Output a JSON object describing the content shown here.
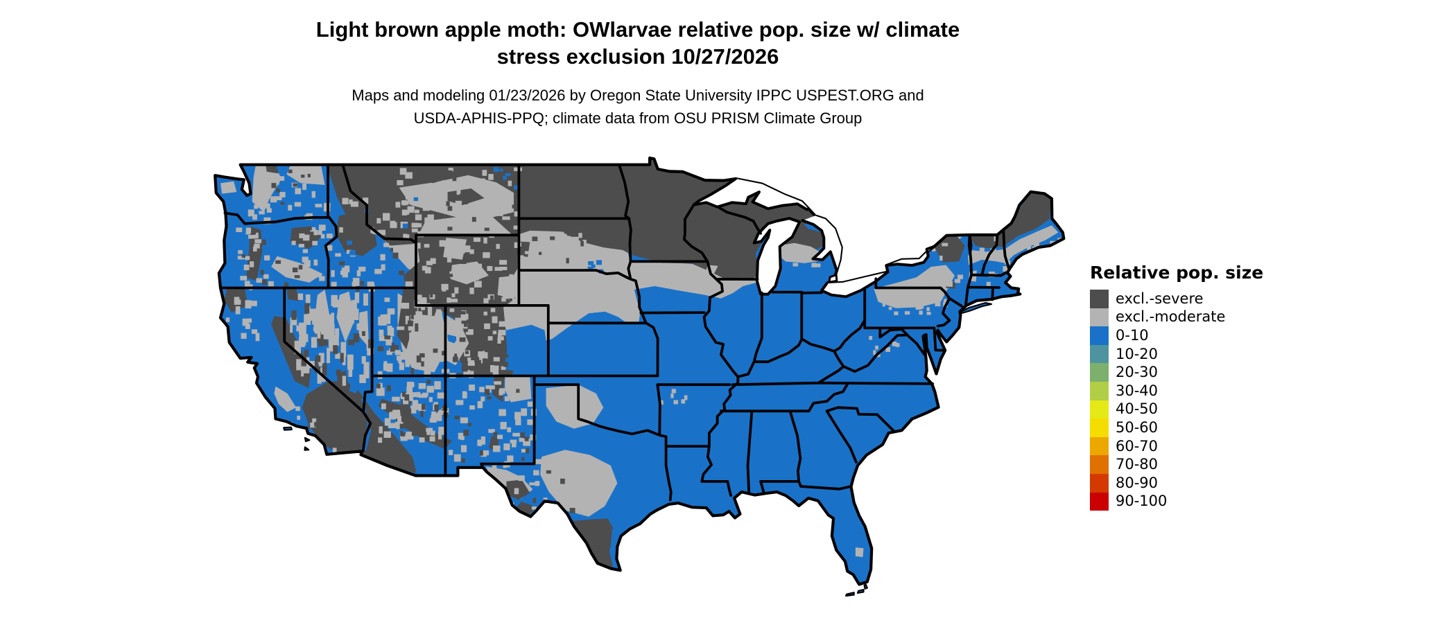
{
  "title": {
    "line1": "Light brown apple moth: OWlarvae relative pop. size w/ climate",
    "line2": "stress exclusion 10/27/2026"
  },
  "subtitle": {
    "line1": "Maps and modeling 01/23/2026 by Oregon State University IPPC USPEST.ORG and",
    "line2": "USDA-APHIS-PPQ; climate data from OSU PRISM Climate Group"
  },
  "legend": {
    "title": "Relative pop. size",
    "items": [
      {
        "label": "excl.-severe",
        "color": "#4d4d4d"
      },
      {
        "label": "excl.-moderate",
        "color": "#b3b3b3"
      },
      {
        "label": "0-10",
        "color": "#1a72c8"
      },
      {
        "label": "10-20",
        "color": "#4d93a0"
      },
      {
        "label": "20-30",
        "color": "#7cb06c"
      },
      {
        "label": "30-40",
        "color": "#b2cd46"
      },
      {
        "label": "40-50",
        "color": "#e5e916"
      },
      {
        "label": "50-60",
        "color": "#f6dd00"
      },
      {
        "label": "60-70",
        "color": "#eda800"
      },
      {
        "label": "70-80",
        "color": "#e07000"
      },
      {
        "label": "80-90",
        "color": "#d43a00"
      },
      {
        "label": "90-100",
        "color": "#cb0000"
      }
    ]
  },
  "map": {
    "region": "Continental United States",
    "background_color": "#ffffff",
    "state_border_color": "#000000",
    "classes_visible_on_map": [
      "excl.-severe",
      "excl.-moderate",
      "0-10"
    ],
    "class_colors": {
      "excl.-severe": "#4d4d4d",
      "excl.-moderate": "#b3b3b3",
      "0-10": "#1a72c8"
    }
  }
}
